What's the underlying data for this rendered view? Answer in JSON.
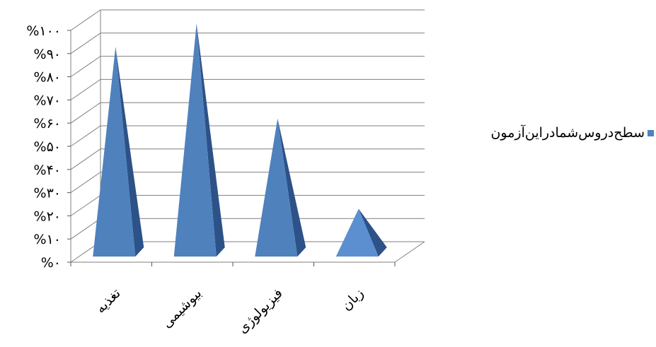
{
  "chart_data": {
    "type": "bar",
    "style": "3d-pyramid",
    "categories": [
      "تغذیه",
      "بیوشیمی",
      "فیزیولوژی",
      "زبان"
    ],
    "series": [
      {
        "name": "سطح‌دروس‌شما‌در‌این‌آزمون",
        "values": [
          93,
          103,
          62,
          23
        ]
      }
    ],
    "yticks": [
      "%٠",
      "%١٠",
      "%٢٠",
      "%٣٠",
      "%۴٠",
      "%۵٠",
      "%۶٠",
      "%٧٠",
      "%٨٠",
      "%٩٠",
      "%١٠٠"
    ],
    "ylim": [
      0,
      100
    ],
    "grid": true,
    "legend": "right",
    "colors": {
      "bar": "#4f81bd",
      "bar_light": "#5b8fd0",
      "bar_dark": "#2c5287",
      "grid": "#7f7f7f"
    }
  }
}
